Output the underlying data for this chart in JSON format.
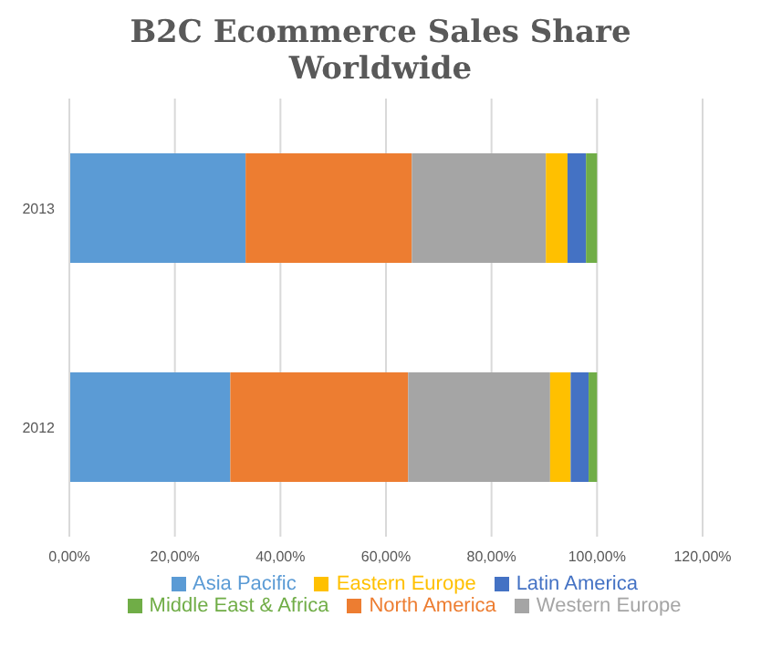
{
  "chart_data": {
    "type": "bar",
    "orientation": "horizontal",
    "stacked": true,
    "title": "B2C Ecommerce Sales Share Worldwide",
    "categories": [
      "2013",
      "2012"
    ],
    "series": [
      {
        "name": "Asia Pacific",
        "color": "#5b9bd5",
        "values": [
          33.4,
          30.5
        ]
      },
      {
        "name": "North America",
        "color": "#ed7d31",
        "values": [
          31.5,
          33.7
        ]
      },
      {
        "name": "Western Europe",
        "color": "#a5a5a5",
        "values": [
          25.4,
          26.9
        ]
      },
      {
        "name": "Eastern Europe",
        "color": "#ffc000",
        "values": [
          4.1,
          3.9
        ]
      },
      {
        "name": "Latin America",
        "color": "#4472c4",
        "values": [
          3.5,
          3.4
        ]
      },
      {
        "name": "Middle East & Africa",
        "color": "#70ad47",
        "values": [
          2.1,
          1.6
        ]
      }
    ],
    "xlim": [
      0,
      120
    ],
    "xticks": [
      {
        "value": 0,
        "label": "0,00%"
      },
      {
        "value": 20,
        "label": "20,00%"
      },
      {
        "value": 40,
        "label": "40,00%"
      },
      {
        "value": 60,
        "label": "60,00%"
      },
      {
        "value": 80,
        "label": "80,00%"
      },
      {
        "value": 100,
        "label": "100,00%"
      },
      {
        "value": 120,
        "label": "120,00%"
      }
    ],
    "grid": "x",
    "legend": "bottom"
  }
}
